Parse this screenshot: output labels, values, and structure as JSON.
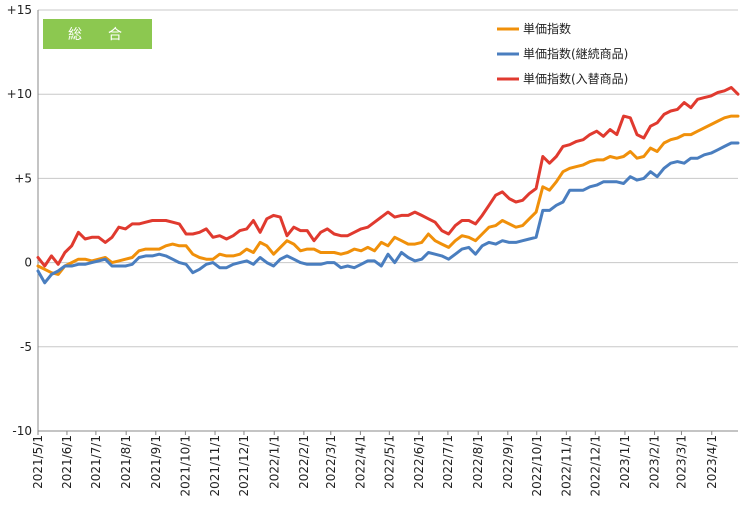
{
  "chart_data": {
    "type": "line",
    "badge": {
      "label": "総　合",
      "color": "#8cc850"
    },
    "ylim": [
      -10,
      15
    ],
    "yticks": [
      {
        "value": 15,
        "label": "+15"
      },
      {
        "value": 10,
        "label": "+10"
      },
      {
        "value": 5,
        "label": "+5"
      },
      {
        "value": 0,
        "label": "0"
      },
      {
        "value": -5,
        "label": "-5"
      },
      {
        "value": -10,
        "label": "-10"
      }
    ],
    "xlim": [
      0,
      104
    ],
    "xticks": [
      {
        "pos": 0,
        "label": "2021/5/1"
      },
      {
        "pos": 4.3,
        "label": "2021/6/1"
      },
      {
        "pos": 8.6,
        "label": "2021/7/1"
      },
      {
        "pos": 13.1,
        "label": "2021/8/1"
      },
      {
        "pos": 17.5,
        "label": "2021/9/1"
      },
      {
        "pos": 21.9,
        "label": "2021/10/1"
      },
      {
        "pos": 26.3,
        "label": "2021/11/1"
      },
      {
        "pos": 30.6,
        "label": "2021/12/1"
      },
      {
        "pos": 35.1,
        "label": "2022/1/1"
      },
      {
        "pos": 39.5,
        "label": "2022/2/1"
      },
      {
        "pos": 43.5,
        "label": "2022/3/1"
      },
      {
        "pos": 47.9,
        "label": "2022/4/1"
      },
      {
        "pos": 52.2,
        "label": "2022/5/1"
      },
      {
        "pos": 56.6,
        "label": "2022/6/1"
      },
      {
        "pos": 60.9,
        "label": "2022/7/1"
      },
      {
        "pos": 65.4,
        "label": "2022/8/1"
      },
      {
        "pos": 69.8,
        "label": "2022/9/1"
      },
      {
        "pos": 74.1,
        "label": "2022/10/1"
      },
      {
        "pos": 78.5,
        "label": "2022/11/1"
      },
      {
        "pos": 82.8,
        "label": "2022/12/1"
      },
      {
        "pos": 87.2,
        "label": "2023/1/1"
      },
      {
        "pos": 91.6,
        "label": "2023/2/1"
      },
      {
        "pos": 95.6,
        "label": "2023/3/1"
      },
      {
        "pos": 100.1,
        "label": "2023/4/1"
      }
    ],
    "grid": "horizontal",
    "legend_position": "top-right",
    "series": [
      {
        "name": "単価指数",
        "color": "#f0900a",
        "values": [
          -0.2,
          -0.4,
          -0.6,
          -0.7,
          -0.2,
          0,
          0.2,
          0.2,
          0.1,
          0.2,
          0.3,
          0,
          0.1,
          0.2,
          0.3,
          0.7,
          0.8,
          0.8,
          0.8,
          1,
          1.1,
          1,
          1,
          0.5,
          0.3,
          0.2,
          0.2,
          0.5,
          0.4,
          0.4,
          0.5,
          0.8,
          0.6,
          1.2,
          1,
          0.5,
          0.9,
          1.3,
          1.1,
          0.7,
          0.8,
          0.8,
          0.6,
          0.6,
          0.6,
          0.5,
          0.6,
          0.8,
          0.7,
          0.9,
          0.7,
          1.2,
          1,
          1.5,
          1.3,
          1.1,
          1.1,
          1.2,
          1.7,
          1.3,
          1.1,
          0.9,
          1.3,
          1.6,
          1.5,
          1.3,
          1.7,
          2.1,
          2.2,
          2.5,
          2.3,
          2.1,
          2.2,
          2.6,
          3,
          4.5,
          4.3,
          4.8,
          5.4,
          5.6,
          5.7,
          5.8,
          6,
          6.1,
          6.1,
          6.3,
          6.2,
          6.3,
          6.6,
          6.2,
          6.3,
          6.8,
          6.6,
          7.1,
          7.3,
          7.4,
          7.6,
          7.6,
          7.8,
          8,
          8.2,
          8.4,
          8.6,
          8.7,
          8.7
        ]
      },
      {
        "name": "単価指数(継続商品)",
        "color": "#4a7ebf",
        "values": [
          -0.5,
          -1.2,
          -0.7,
          -0.5,
          -0.2,
          -0.2,
          -0.1,
          -0.1,
          0,
          0.1,
          0.2,
          -0.2,
          -0.2,
          -0.2,
          -0.1,
          0.3,
          0.4,
          0.4,
          0.5,
          0.4,
          0.2,
          0,
          -0.1,
          -0.6,
          -0.4,
          -0.1,
          0,
          -0.3,
          -0.3,
          -0.1,
          0,
          0.1,
          -0.1,
          0.3,
          0,
          -0.2,
          0.2,
          0.4,
          0.2,
          0,
          -0.1,
          -0.1,
          -0.1,
          0,
          0,
          -0.3,
          -0.2,
          -0.3,
          -0.1,
          0.1,
          0.1,
          -0.2,
          0.5,
          0,
          0.6,
          0.3,
          0.1,
          0.2,
          0.6,
          0.5,
          0.4,
          0.2,
          0.5,
          0.8,
          0.9,
          0.5,
          1,
          1.2,
          1.1,
          1.3,
          1.2,
          1.2,
          1.3,
          1.4,
          1.5,
          3.1,
          3.1,
          3.4,
          3.6,
          4.3,
          4.3,
          4.3,
          4.5,
          4.6,
          4.8,
          4.8,
          4.8,
          4.7,
          5.1,
          4.9,
          5,
          5.4,
          5.1,
          5.6,
          5.9,
          6,
          5.9,
          6.2,
          6.2,
          6.4,
          6.5,
          6.7,
          6.9,
          7.1,
          7.1
        ]
      },
      {
        "name": "単価指数(入替商品)",
        "color": "#e03a2f",
        "values": [
          0.3,
          -0.2,
          0.4,
          -0.1,
          0.6,
          1,
          1.8,
          1.4,
          1.5,
          1.5,
          1.2,
          1.5,
          2.1,
          2,
          2.3,
          2.3,
          2.4,
          2.5,
          2.5,
          2.5,
          2.4,
          2.3,
          1.7,
          1.7,
          1.8,
          2,
          1.5,
          1.6,
          1.4,
          1.6,
          1.9,
          2,
          2.5,
          1.8,
          2.6,
          2.8,
          2.7,
          1.6,
          2.1,
          1.9,
          1.9,
          1.3,
          1.8,
          2,
          1.7,
          1.6,
          1.6,
          1.8,
          2,
          2.1,
          2.4,
          2.7,
          3,
          2.7,
          2.8,
          2.8,
          3,
          2.8,
          2.6,
          2.4,
          1.9,
          1.7,
          2.2,
          2.5,
          2.5,
          2.3,
          2.8,
          3.4,
          4,
          4.2,
          3.8,
          3.6,
          3.7,
          4.1,
          4.4,
          6.3,
          5.9,
          6.3,
          6.9,
          7,
          7.2,
          7.3,
          7.6,
          7.8,
          7.5,
          7.9,
          7.6,
          8.7,
          8.6,
          7.6,
          7.4,
          8.1,
          8.3,
          8.8,
          9,
          9.1,
          9.5,
          9.2,
          9.7,
          9.8,
          9.9,
          10.1,
          10.2,
          10.4,
          10
        ]
      }
    ]
  }
}
